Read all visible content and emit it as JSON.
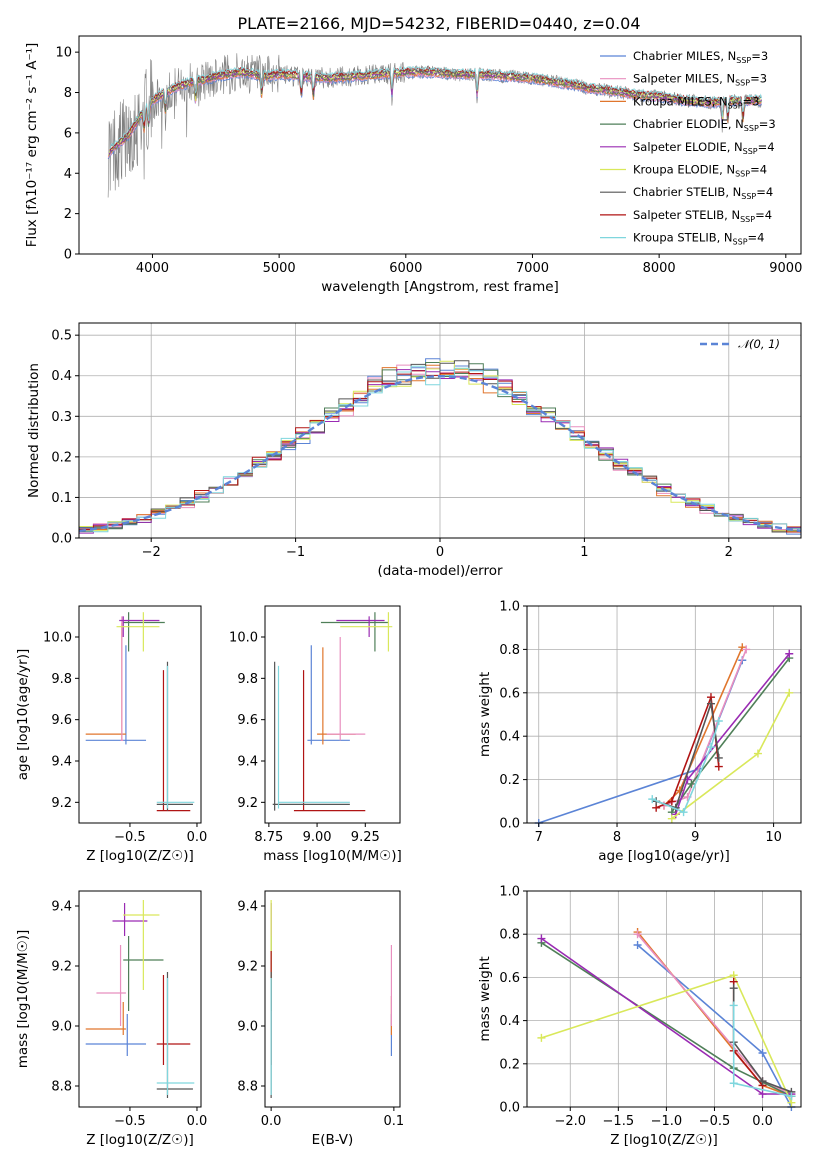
{
  "colors": {
    "chabrier_miles": "#5b84d6",
    "salpeter_miles": "#e88fbf",
    "kroupa_miles": "#e0762d",
    "chabrier_elodie": "#4f7f58",
    "salpeter_elodie": "#9a2bb3",
    "kroupa_elodie": "#d9e85a",
    "chabrier_stelib": "#555555",
    "salpeter_stelib": "#b01414",
    "kroupa_stelib": "#7fd6dd",
    "gauss": "#5b84d6"
  },
  "chart_data": [
    {
      "id": "spectrum",
      "type": "line",
      "title": "PLATE=2166, MJD=54232, FIBERID=0440, z=0.04",
      "xlabel": "wavelength [Angstrom, rest frame]",
      "ylabel": "Flux [fλ10⁻¹⁷ erg cm⁻² s⁻¹ A⁻¹]",
      "xlim": [
        3420,
        9120
      ],
      "ylim": [
        0,
        10.8
      ],
      "xticks": [
        4000,
        5000,
        6000,
        7000,
        8000,
        9000
      ],
      "yticks": [
        0,
        2,
        4,
        6,
        8,
        10
      ],
      "legend_position": "upper-right",
      "series": [
        {
          "name": "Chabrier MILES, N_SSP=3",
          "color_key": "chabrier_miles"
        },
        {
          "name": "Salpeter MILES, N_SSP=3",
          "color_key": "salpeter_miles"
        },
        {
          "name": "Kroupa MILES, N_SSP=3",
          "color_key": "kroupa_miles"
        },
        {
          "name": "Chabrier ELODIE, N_SSP=3",
          "color_key": "chabrier_elodie"
        },
        {
          "name": "Salpeter ELODIE, N_SSP=4",
          "color_key": "salpeter_elodie"
        },
        {
          "name": "Kroupa ELODIE, N_SSP=4",
          "color_key": "kroupa_elodie"
        },
        {
          "name": "Chabrier STELIB, N_SSP=4",
          "color_key": "chabrier_stelib"
        },
        {
          "name": "Salpeter STELIB, N_SSP=4",
          "color_key": "salpeter_stelib"
        },
        {
          "name": "Kroupa STELIB, N_SSP=4",
          "color_key": "kroupa_stelib"
        }
      ],
      "continuum": {
        "x": [
          3650,
          3700,
          3800,
          3900,
          4000,
          4100,
          4200,
          4300,
          4400,
          4500,
          4600,
          4700,
          4800,
          4900,
          5000,
          5200,
          5400,
          5600,
          5800,
          6000,
          6200,
          6400,
          6600,
          6800,
          7000,
          7200,
          7400,
          7420,
          7600,
          7800,
          8000,
          8200,
          8400,
          8600,
          8800
        ],
        "y": [
          5.0,
          5.3,
          5.8,
          6.8,
          7.6,
          8.0,
          8.3,
          8.5,
          8.6,
          8.8,
          8.9,
          9.0,
          8.9,
          8.8,
          8.9,
          8.8,
          8.7,
          8.8,
          8.9,
          9.0,
          9.0,
          8.9,
          8.9,
          8.8,
          8.7,
          8.5,
          8.3,
          8.2,
          8.1,
          7.9,
          7.8,
          7.6,
          7.5,
          7.6,
          7.6
        ]
      }
    },
    {
      "id": "residuals",
      "type": "line",
      "xlabel": "(data-model)/error",
      "ylabel": "Normed distribution",
      "xlim": [
        -2.5,
        2.5
      ],
      "ylim": [
        0,
        0.53
      ],
      "xticks": [
        -2,
        -1,
        0,
        1,
        2
      ],
      "yticks": [
        0.0,
        0.1,
        0.2,
        0.3,
        0.4,
        0.5
      ],
      "grid": true,
      "legend_position": "upper-right",
      "gauss_label": "𝒩(0, 1)"
    },
    {
      "id": "age_vs_z",
      "type": "scatter",
      "xlabel": "Z [log10(Z/Z☉)]",
      "ylabel": "age  [log10(age/yr)]",
      "xlim": [
        -0.88,
        0.03
      ],
      "ylim": [
        9.1,
        10.15
      ],
      "xticks": [
        -0.5,
        0.0
      ],
      "yticks": [
        9.2,
        9.4,
        9.6,
        9.8,
        10.0
      ]
    },
    {
      "id": "age_vs_mass",
      "type": "scatter",
      "xlabel": "mass [log10(M/M☉)]",
      "ylabel": "",
      "xlim": [
        8.73,
        9.43
      ],
      "ylim": [
        9.1,
        10.15
      ],
      "xticks": [
        8.75,
        9.0,
        9.25
      ],
      "yticks": [
        9.2,
        9.4,
        9.6,
        9.8,
        10.0
      ]
    },
    {
      "id": "weight_vs_age",
      "type": "line",
      "xlabel": "age  [log10(age/yr)]",
      "ylabel": "mass weight",
      "xlim": [
        6.85,
        10.35
      ],
      "ylim": [
        0,
        1.0
      ],
      "xticks": [
        7,
        8,
        9,
        10
      ],
      "yticks": [
        0.0,
        0.2,
        0.4,
        0.6,
        0.8,
        1.0
      ],
      "grid": true,
      "series": [
        {
          "color_key": "chabrier_miles",
          "x": [
            7.0,
            9.05,
            9.6
          ],
          "y": [
            0.0,
            0.25,
            0.75
          ]
        },
        {
          "color_key": "kroupa_miles",
          "x": [
            8.6,
            8.8,
            9.6
          ],
          "y": [
            0.08,
            0.15,
            0.81
          ]
        },
        {
          "color_key": "salpeter_miles",
          "x": [
            8.6,
            8.9,
            9.65
          ],
          "y": [
            0.08,
            0.12,
            0.8
          ]
        },
        {
          "color_key": "chabrier_elodie",
          "x": [
            8.7,
            8.95,
            10.2
          ],
          "y": [
            0.05,
            0.18,
            0.76
          ]
        },
        {
          "color_key": "salpeter_elodie",
          "x": [
            8.75,
            8.9,
            10.2
          ],
          "y": [
            0.04,
            0.2,
            0.78
          ]
        },
        {
          "color_key": "kroupa_elodie",
          "x": [
            8.7,
            9.8,
            10.2
          ],
          "y": [
            0.02,
            0.32,
            0.6
          ]
        },
        {
          "color_key": "salpeter_stelib",
          "x": [
            8.5,
            8.7,
            9.2,
            9.3
          ],
          "y": [
            0.07,
            0.1,
            0.58,
            0.26
          ]
        },
        {
          "color_key": "chabrier_stelib",
          "x": [
            8.5,
            8.75,
            9.2,
            9.3
          ],
          "y": [
            0.1,
            0.07,
            0.55,
            0.3
          ]
        },
        {
          "color_key": "kroupa_stelib",
          "x": [
            8.45,
            8.85,
            9.2,
            9.3
          ],
          "y": [
            0.11,
            0.05,
            0.35,
            0.47
          ]
        }
      ]
    },
    {
      "id": "mass_vs_z",
      "type": "scatter",
      "xlabel": "Z [log10(Z/Z☉)]",
      "ylabel": "mass [log10(M/M☉)]",
      "xlim": [
        -0.88,
        0.03
      ],
      "ylim": [
        8.73,
        9.45
      ],
      "xticks": [
        -0.5,
        0.0
      ],
      "yticks": [
        8.8,
        9.0,
        9.2,
        9.4
      ]
    },
    {
      "id": "mass_vs_ebv",
      "type": "scatter",
      "xlabel": "E(B-V)",
      "ylabel": "",
      "xlim": [
        -0.005,
        0.105
      ],
      "ylim": [
        8.73,
        9.45
      ],
      "xticks": [
        0.0,
        0.1
      ],
      "yticks": [
        8.8,
        9.0,
        9.2,
        9.4
      ]
    },
    {
      "id": "weight_vs_z",
      "type": "line",
      "xlabel": "Z [log10(Z/Z☉)]",
      "ylabel": "mass weight",
      "xlim": [
        -2.45,
        0.4
      ],
      "ylim": [
        0,
        1.0
      ],
      "xticks": [
        -2.0,
        -1.5,
        -1.0,
        -0.5,
        0.0
      ],
      "yticks": [
        0.0,
        0.2,
        0.4,
        0.6,
        0.8,
        1.0
      ],
      "grid": true,
      "series": [
        {
          "color_key": "chabrier_miles",
          "x": [
            -1.3,
            0.0,
            0.3
          ],
          "y": [
            0.75,
            0.25,
            0.0
          ]
        },
        {
          "color_key": "kroupa_miles",
          "x": [
            -1.3,
            0.0,
            0.3
          ],
          "y": [
            0.81,
            0.1,
            0.05
          ]
        },
        {
          "color_key": "salpeter_miles",
          "x": [
            -1.3,
            0.0,
            0.3
          ],
          "y": [
            0.8,
            0.12,
            0.06
          ]
        },
        {
          "color_key": "chabrier_elodie",
          "x": [
            -2.3,
            -0.3,
            0.3
          ],
          "y": [
            0.76,
            0.18,
            0.05
          ]
        },
        {
          "color_key": "salpeter_elodie",
          "x": [
            -2.3,
            0.0,
            0.3
          ],
          "y": [
            0.78,
            0.06,
            0.06
          ]
        },
        {
          "color_key": "kroupa_elodie",
          "x": [
            -2.3,
            -0.3,
            0.3
          ],
          "y": [
            0.32,
            0.61,
            0.02
          ]
        },
        {
          "color_key": "salpeter_stelib",
          "x": [
            -0.3,
            -0.3,
            0.0
          ],
          "y": [
            0.58,
            0.26,
            0.1
          ]
        },
        {
          "color_key": "chabrier_stelib",
          "x": [
            -0.3,
            -0.3,
            0.0,
            0.3
          ],
          "y": [
            0.55,
            0.3,
            0.12,
            0.07
          ]
        },
        {
          "color_key": "kroupa_stelib",
          "x": [
            -0.3,
            -0.3,
            0.3
          ],
          "y": [
            0.47,
            0.11,
            0.05
          ]
        }
      ]
    }
  ]
}
